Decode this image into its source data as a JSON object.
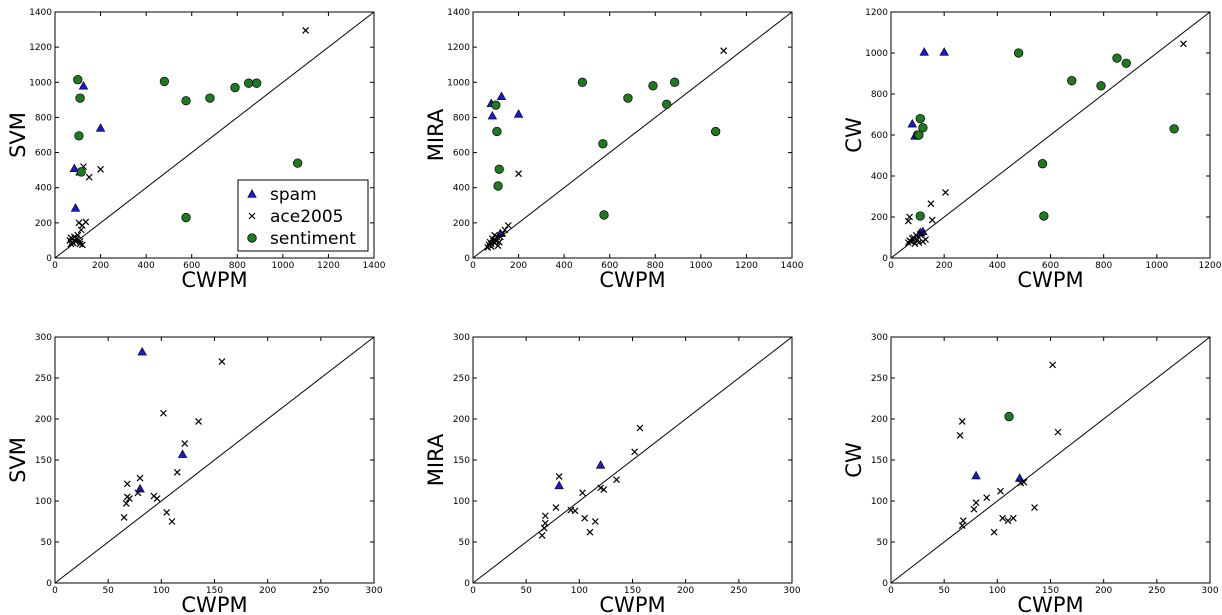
{
  "colors": {
    "spam": "#1a1acc",
    "ace2005": "#000000",
    "sentiment": "#1f7a1f",
    "marker_edge": "#000000",
    "axes": "#000000",
    "diagonal": "#000000"
  },
  "chart_data": [
    {
      "type": "scatter",
      "xlabel": "CWPM",
      "ylabel": "SVM",
      "xlim": [
        0,
        1400
      ],
      "ylim": [
        0,
        1400
      ],
      "xticks": [
        "0",
        "200",
        "400",
        "600",
        "800",
        "1000",
        "1200",
        "1400"
      ],
      "yticks": [
        "0",
        "200",
        "400",
        "600",
        "800",
        "1000",
        "1200",
        "1400"
      ],
      "diagonal": true,
      "legend": {
        "location": "lower-right",
        "entries": [
          "spam",
          "ace2005",
          "sentiment"
        ]
      },
      "series": [
        {
          "name": "spam",
          "marker": "triangle",
          "x": [
            85,
            110,
            125,
            200,
            90
          ],
          "y": [
            510,
            490,
            980,
            740,
            285
          ]
        },
        {
          "name": "ace2005",
          "marker": "x",
          "x": [
            65,
            70,
            75,
            80,
            85,
            90,
            95,
            100,
            105,
            110,
            115,
            120,
            125,
            135,
            150,
            200,
            1100,
            110,
            120,
            70
          ],
          "y": [
            100,
            115,
            90,
            85,
            120,
            95,
            110,
            130,
            200,
            80,
            160,
            185,
            520,
            205,
            460,
            505,
            1295,
            95,
            75,
            80
          ]
        },
        {
          "name": "sentiment",
          "marker": "circle",
          "x": [
            100,
            110,
            115,
            105,
            480,
            575,
            680,
            790,
            850,
            885,
            1065,
            575
          ],
          "y": [
            1015,
            910,
            490,
            695,
            1005,
            895,
            910,
            970,
            995,
            995,
            540,
            230
          ]
        }
      ]
    },
    {
      "type": "scatter",
      "xlabel": "CWPM",
      "ylabel": "MIRA",
      "xlim": [
        0,
        1400
      ],
      "ylim": [
        0,
        1400
      ],
      "xticks": [
        "0",
        "200",
        "400",
        "600",
        "800",
        "1000",
        "1200",
        "1400"
      ],
      "yticks": [
        "0",
        "200",
        "400",
        "600",
        "800",
        "1000",
        "1200",
        "1400"
      ],
      "diagonal": true,
      "series": [
        {
          "name": "spam",
          "marker": "triangle",
          "x": [
            80,
            85,
            125,
            200,
            120
          ],
          "y": [
            880,
            810,
            920,
            820,
            140
          ]
        },
        {
          "name": "ace2005",
          "marker": "x",
          "x": [
            65,
            70,
            75,
            80,
            85,
            90,
            95,
            100,
            105,
            110,
            115,
            120,
            130,
            140,
            155,
            200,
            1100,
            80,
            95
          ],
          "y": [
            60,
            75,
            90,
            80,
            110,
            95,
            85,
            100,
            120,
            70,
            90,
            120,
            140,
            160,
            185,
            480,
            1180,
            65,
            130
          ]
        },
        {
          "name": "sentiment",
          "marker": "circle",
          "x": [
            100,
            105,
            115,
            110,
            480,
            570,
            680,
            790,
            850,
            885,
            1065,
            575
          ],
          "y": [
            870,
            720,
            505,
            410,
            1000,
            650,
            910,
            980,
            875,
            1000,
            720,
            245
          ]
        }
      ]
    },
    {
      "type": "scatter",
      "xlabel": "CWPM",
      "ylabel": "CW",
      "xlim": [
        0,
        1200
      ],
      "ylim": [
        0,
        1200
      ],
      "xticks": [
        "0",
        "200",
        "400",
        "600",
        "800",
        "1000",
        "1200"
      ],
      "yticks": [
        "0",
        "200",
        "400",
        "600",
        "800",
        "1000",
        "1200"
      ],
      "diagonal": true,
      "series": [
        {
          "name": "spam",
          "marker": "triangle",
          "x": [
            80,
            125,
            200,
            90,
            120,
            110
          ],
          "y": [
            655,
            1005,
            1005,
            595,
            130,
            125
          ]
        },
        {
          "name": "ace2005",
          "marker": "x",
          "x": [
            65,
            70,
            75,
            80,
            85,
            90,
            95,
            100,
            105,
            110,
            115,
            120,
            130,
            150,
            155,
            205,
            1100,
            65,
            70
          ],
          "y": [
            75,
            85,
            80,
            95,
            100,
            70,
            110,
            90,
            75,
            115,
            120,
            80,
            90,
            265,
            185,
            320,
            1045,
            180,
            200
          ]
        },
        {
          "name": "sentiment",
          "marker": "circle",
          "x": [
            100,
            110,
            120,
            105,
            480,
            570,
            680,
            790,
            850,
            885,
            1065,
            575,
            110
          ],
          "y": [
            600,
            680,
            635,
            600,
            1000,
            460,
            865,
            840,
            975,
            950,
            630,
            205,
            205
          ]
        }
      ]
    },
    {
      "type": "scatter",
      "xlabel": "CWPM",
      "ylabel": "SVM",
      "xlim": [
        0,
        300
      ],
      "ylim": [
        0,
        300
      ],
      "xticks": [
        "0",
        "50",
        "100",
        "150",
        "200",
        "250",
        "300"
      ],
      "yticks": [
        "0",
        "50",
        "100",
        "150",
        "200",
        "250",
        "300"
      ],
      "diagonal": true,
      "series": [
        {
          "name": "spam",
          "marker": "triangle",
          "x": [
            82,
            120,
            80
          ],
          "y": [
            282,
            157,
            115
          ]
        },
        {
          "name": "ace2005",
          "marker": "x",
          "x": [
            65,
            67,
            68,
            68,
            70,
            78,
            80,
            93,
            96,
            102,
            105,
            110,
            115,
            122,
            135,
            157
          ],
          "y": [
            80,
            97,
            105,
            121,
            103,
            110,
            128,
            106,
            103,
            207,
            86,
            75,
            135,
            170,
            197,
            270
          ]
        }
      ]
    },
    {
      "type": "scatter",
      "xlabel": "CWPM",
      "ylabel": "MIRA",
      "xlim": [
        0,
        300
      ],
      "ylim": [
        0,
        300
      ],
      "xticks": [
        "0",
        "50",
        "100",
        "150",
        "200",
        "250",
        "300"
      ],
      "yticks": [
        "0",
        "50",
        "100",
        "150",
        "200",
        "250",
        "300"
      ],
      "diagonal": true,
      "series": [
        {
          "name": "spam",
          "marker": "triangle",
          "x": [
            81,
            120
          ],
          "y": [
            119,
            144
          ]
        },
        {
          "name": "ace2005",
          "marker": "x",
          "x": [
            65,
            67,
            68,
            68,
            78,
            81,
            92,
            96,
            103,
            105,
            110,
            115,
            120,
            123,
            135,
            152,
            157
          ],
          "y": [
            58,
            67,
            73,
            82,
            92,
            130,
            89,
            88,
            110,
            79,
            62,
            75,
            116,
            114,
            126,
            160,
            189
          ]
        }
      ]
    },
    {
      "type": "scatter",
      "xlabel": "CWPM",
      "ylabel": "CW",
      "xlim": [
        0,
        300
      ],
      "ylim": [
        0,
        300
      ],
      "xticks": [
        "0",
        "50",
        "100",
        "150",
        "200",
        "250",
        "300"
      ],
      "yticks": [
        "0",
        "50",
        "100",
        "150",
        "200",
        "250",
        "300"
      ],
      "diagonal": true,
      "series": [
        {
          "name": "spam",
          "marker": "triangle",
          "x": [
            80,
            121
          ],
          "y": [
            131,
            128
          ]
        },
        {
          "name": "ace2005",
          "marker": "x",
          "x": [
            65,
            67,
            67,
            68,
            78,
            80,
            90,
            97,
            103,
            105,
            110,
            115,
            122,
            125,
            135,
            152,
            157
          ],
          "y": [
            180,
            197,
            70,
            76,
            90,
            98,
            104,
            62,
            112,
            79,
            76,
            79,
            122,
            123,
            92,
            266,
            184
          ]
        },
        {
          "name": "sentiment",
          "marker": "circle",
          "x": [
            111
          ],
          "y": [
            203
          ]
        }
      ]
    }
  ]
}
